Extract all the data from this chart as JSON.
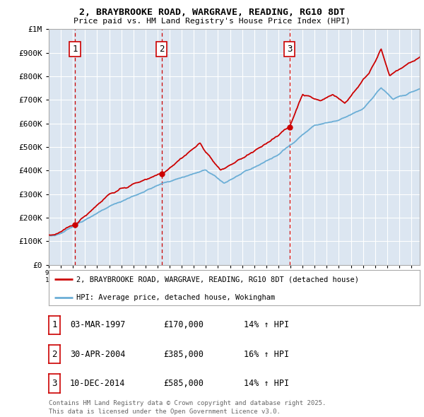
{
  "title1": "2, BRAYBROOKE ROAD, WARGRAVE, READING, RG10 8DT",
  "title2": "Price paid vs. HM Land Registry's House Price Index (HPI)",
  "legend_red": "2, BRAYBROOKE ROAD, WARGRAVE, READING, RG10 8DT (detached house)",
  "legend_blue": "HPI: Average price, detached house, Wokingham",
  "table_rows": [
    {
      "num": "1",
      "date": "03-MAR-1997",
      "price": "£170,000",
      "hpi": "14% ↑ HPI"
    },
    {
      "num": "2",
      "date": "30-APR-2004",
      "price": "£385,000",
      "hpi": "16% ↑ HPI"
    },
    {
      "num": "3",
      "date": "10-DEC-2014",
      "price": "£585,000",
      "hpi": "14% ↑ HPI"
    }
  ],
  "footnote": "Contains HM Land Registry data © Crown copyright and database right 2025.\nThis data is licensed under the Open Government Licence v3.0.",
  "sale_dates": [
    1997.17,
    2004.33,
    2014.92
  ],
  "sale_prices": [
    170000,
    385000,
    585000
  ],
  "sale_labels": [
    "1",
    "2",
    "3"
  ],
  "ylim": [
    0,
    1000000
  ],
  "xlim_start": 1995.3,
  "xlim_end": 2025.7,
  "bg_color": "#dce6f1",
  "red_color": "#cc0000",
  "blue_color": "#6baed6",
  "grid_color": "#ffffff",
  "mono_font": "DejaVu Sans Mono"
}
